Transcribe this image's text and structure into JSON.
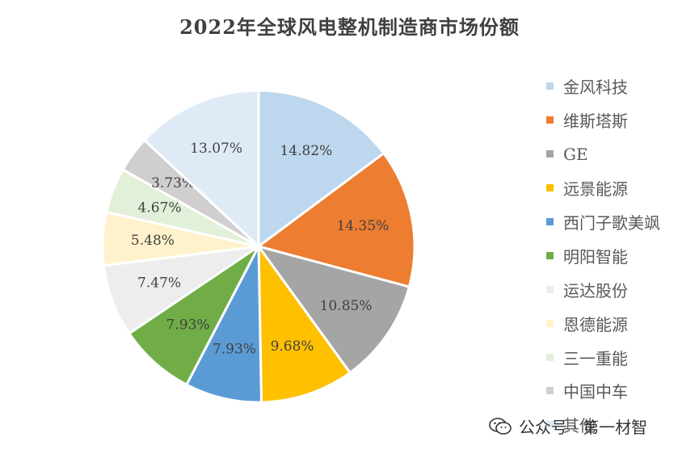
{
  "chart_data": {
    "type": "pie",
    "title": "2022年全球风电整机制造商市场份额",
    "slices": [
      {
        "label": "金风科技",
        "value": 14.82,
        "display": "14.82%",
        "color": "#bdd7ee"
      },
      {
        "label": "维斯塔斯",
        "value": 14.35,
        "display": "14.35%",
        "color": "#ed7d31"
      },
      {
        "label": "GE",
        "value": 10.85,
        "display": "10.85%",
        "color": "#a5a5a5"
      },
      {
        "label": "远景能源",
        "value": 9.68,
        "display": "9.68%",
        "color": "#ffc000"
      },
      {
        "label": "西门子歌美飒",
        "value": 7.93,
        "display": "7.93%",
        "color": "#5b9bd5"
      },
      {
        "label": "明阳智能",
        "value": 7.93,
        "display": "7.93%",
        "color": "#70ad47"
      },
      {
        "label": "运达股份",
        "value": 7.47,
        "display": "7.47%",
        "color": "#ededed"
      },
      {
        "label": "恩德能源",
        "value": 5.48,
        "display": "5.48%",
        "color": "#fff2cc"
      },
      {
        "label": "三一重能",
        "value": 4.67,
        "display": "4.67%",
        "color": "#e2f0d9"
      },
      {
        "label": "中国中车",
        "value": 3.73,
        "display": "3.73%",
        "color": "#d0cece"
      },
      {
        "label": "其他",
        "value": 13.07,
        "display": "13.07%",
        "color": "#deebf7"
      }
    ],
    "legend_position": "right"
  },
  "watermark": {
    "text": "公众号 · 第一材智",
    "icon": "wechat-icon"
  }
}
